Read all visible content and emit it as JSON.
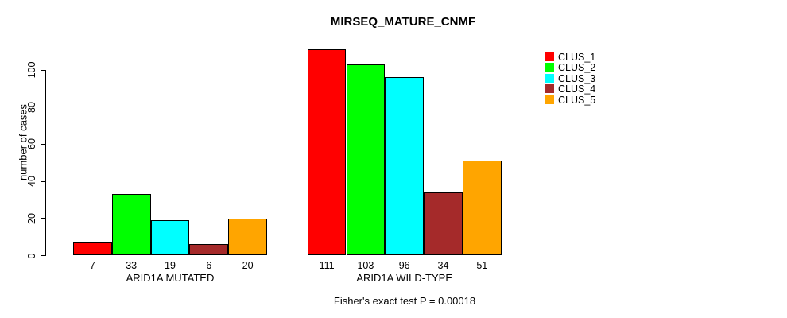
{
  "chart_data": {
    "type": "bar",
    "title": "MIRSEQ_MATURE_CNMF",
    "ylabel": "number of cases",
    "xlabel": "",
    "footnote": "Fisher's exact test P = 0.00018",
    "categories": [
      "ARID1A MUTATED",
      "ARID1A WILD-TYPE"
    ],
    "series": [
      {
        "name": "CLUS_1",
        "color": "#FF0000",
        "values": [
          7,
          111
        ]
      },
      {
        "name": "CLUS_2",
        "color": "#00FF00",
        "values": [
          33,
          103
        ]
      },
      {
        "name": "CLUS_3",
        "color": "#00FFFF",
        "values": [
          19,
          96
        ]
      },
      {
        "name": "CLUS_4",
        "color": "#A52A2A",
        "values": [
          6,
          34
        ]
      },
      {
        "name": "CLUS_5",
        "color": "#FFA500",
        "values": [
          20,
          51
        ]
      }
    ],
    "bar_value_labels": [
      [
        7,
        33,
        19,
        6,
        20
      ],
      [
        111,
        103,
        96,
        34,
        51
      ]
    ],
    "yticks": [
      0,
      20,
      40,
      60,
      80,
      100
    ],
    "ylim": [
      0,
      115
    ],
    "grid": false,
    "legend_position": "top-right",
    "bar_border_color": "#000000",
    "text_color": "#000000",
    "background_color": "#FFFFFF"
  }
}
